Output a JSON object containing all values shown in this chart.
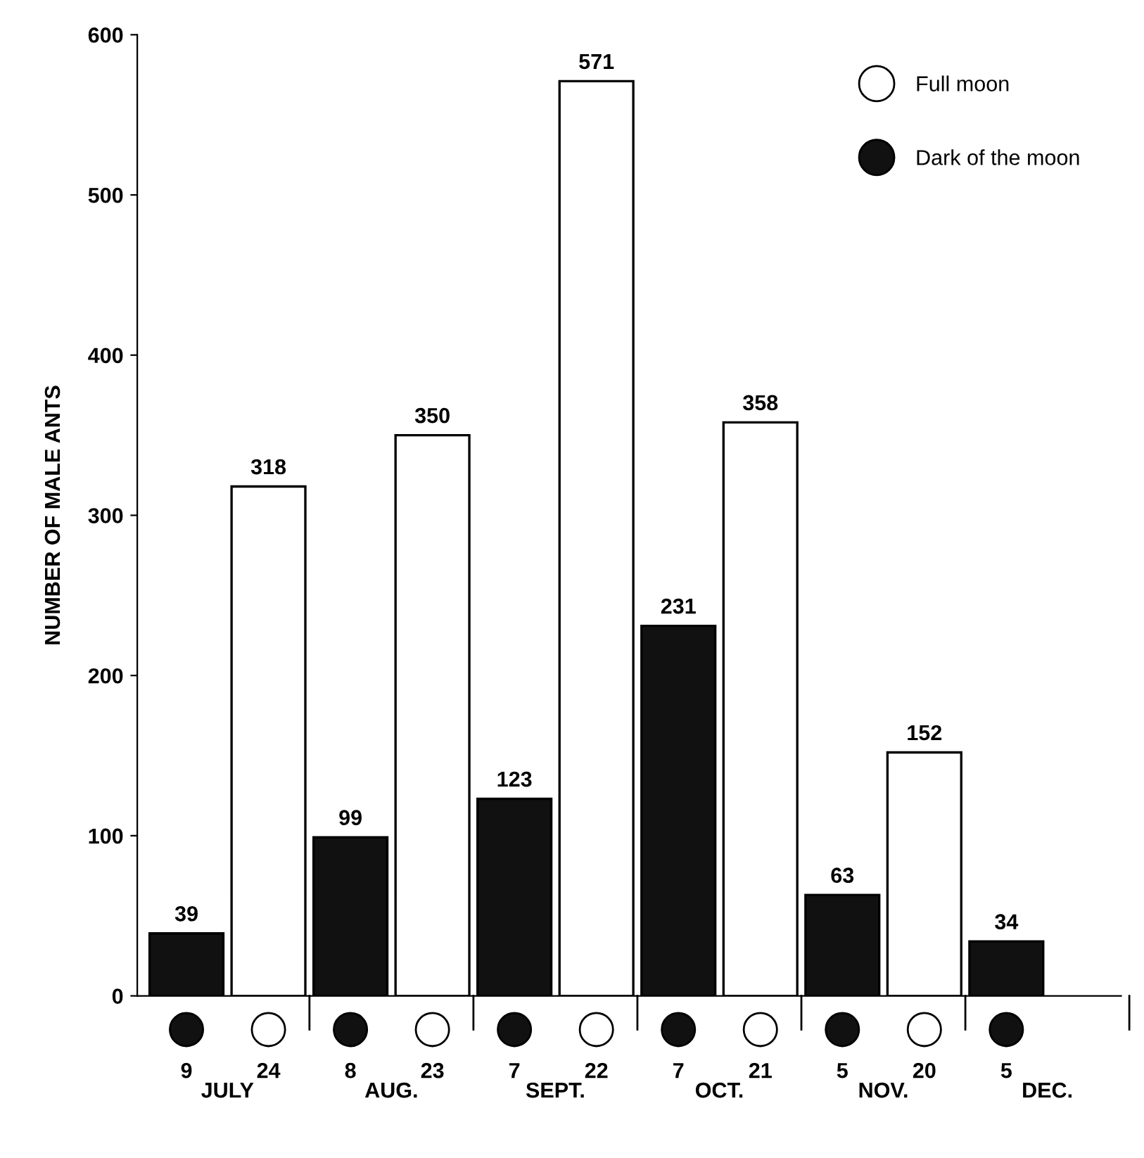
{
  "chart_data": {
    "type": "bar",
    "ylabel": "NUMBER OF MALE ANTS",
    "categories": [
      "9",
      "24",
      "8",
      "23",
      "7",
      "22",
      "7",
      "21",
      "5",
      "20",
      "5"
    ],
    "series": [
      {
        "name": "Full moon",
        "color": "#ffffff",
        "values": [
          null,
          318,
          null,
          350,
          null,
          571,
          null,
          358,
          null,
          152,
          null
        ]
      },
      {
        "name": "Dark of the moon",
        "color": "#111111",
        "values": [
          39,
          null,
          99,
          null,
          123,
          null,
          231,
          null,
          63,
          null,
          34
        ]
      }
    ],
    "ylim": [
      0,
      600
    ],
    "yticks": [
      0,
      100,
      200,
      300,
      400,
      500,
      600
    ],
    "data_labels": true,
    "grid": false,
    "legend": "top right",
    "annotations": [
      "JULY",
      "AUG.",
      "SEPT.",
      "OCT.",
      "NOV.",
      "DEC."
    ]
  }
}
